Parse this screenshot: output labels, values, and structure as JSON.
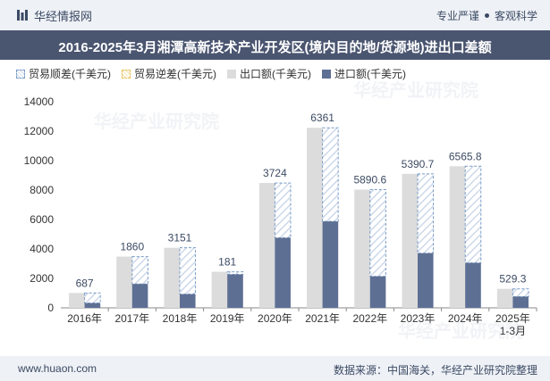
{
  "header": {
    "brand": "华经情报网",
    "slogan_left": "专业严谨",
    "slogan_right": "客观科学"
  },
  "title": "2016-2025年3月湘潭高新技术产业开发区(境内目的地/货源地)进出口差额",
  "legend": {
    "surplus": "贸易顺差(千美元)",
    "deficit": "贸易逆差(千美元)",
    "export": "出口额(千美元)",
    "import": "进口额(千美元)"
  },
  "footer": {
    "website": "www.huaon.com",
    "source": "数据来源：中国海关，华经产业研究院整理"
  },
  "watermark": "华经产业研究院",
  "colors": {
    "export": "#dcdcdc",
    "import": "#5e6f94",
    "surplus_border": "#7a9cc8",
    "header_bg": "#eef1f6",
    "title_bg": "#4a5570"
  },
  "chart_data": {
    "type": "bar",
    "categories": [
      "2016年",
      "2017年",
      "2018年",
      "2019年",
      "2020年",
      "2021年",
      "2022年",
      "2023年",
      "2024年",
      "2025年\n1-3月"
    ],
    "series": [
      {
        "name": "出口额(千美元)",
        "values": [
          1010,
          3480,
          4080,
          2450,
          8480,
          12230,
          8030,
          9100,
          9620,
          1290
        ]
      },
      {
        "name": "进口额(千美元)",
        "values": [
          323,
          1620,
          929,
          2269,
          4756,
          5869,
          2139,
          3709,
          3054,
          761
        ]
      },
      {
        "name": "贸易顺差(千美元)",
        "values": [
          687,
          1860,
          3151,
          181,
          3724,
          6361,
          5890.6,
          5390.7,
          6565.8,
          529.3
        ]
      }
    ],
    "data_labels": [
      "687",
      "1860",
      "3151",
      "181",
      "3724",
      "6361",
      "5890.6",
      "5390.7",
      "6565.8",
      "529.3"
    ],
    "ylim": [
      0,
      14000
    ],
    "yticks": [
      0,
      2000,
      4000,
      6000,
      8000,
      10000,
      12000,
      14000
    ],
    "grid": false,
    "legend_position": "top-left"
  }
}
